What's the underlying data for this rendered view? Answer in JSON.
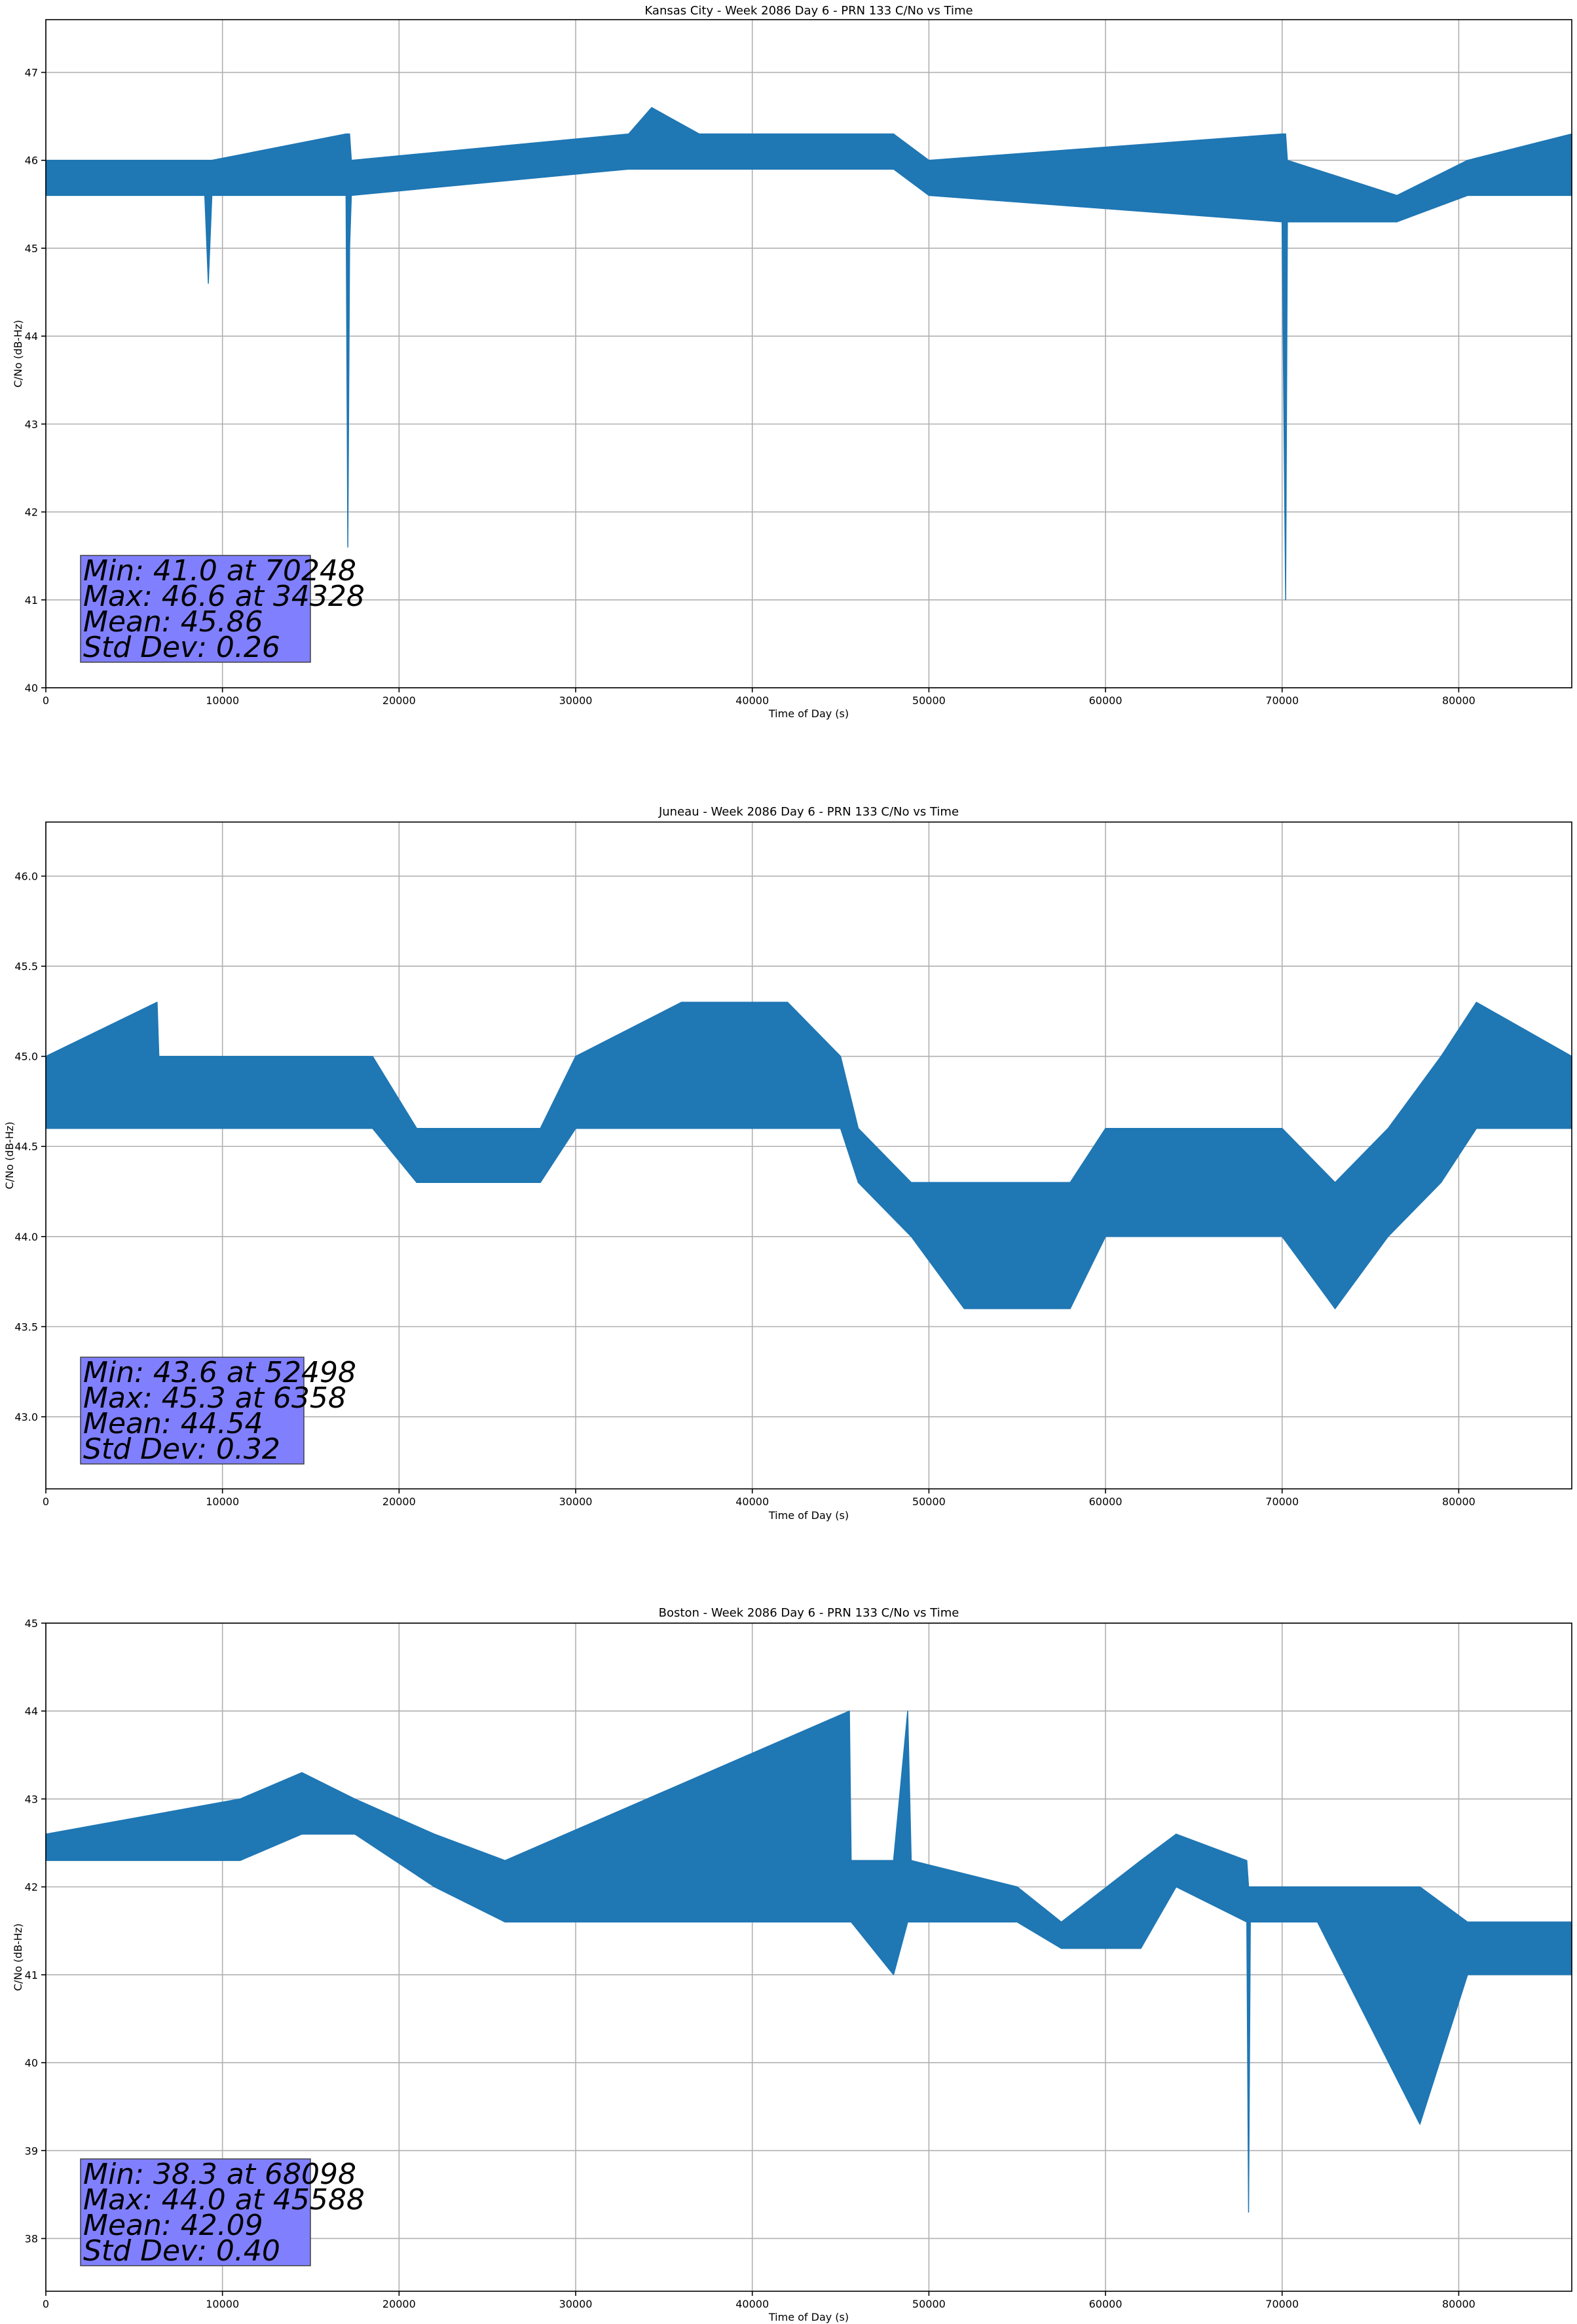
{
  "chart_data": [
    {
      "type": "line",
      "title": "Kansas City - Week 2086 Day 6 - PRN 133 C/No vs Time",
      "xlabel": "Time of Day (s)",
      "ylabel": "C/No (dB-Hz)",
      "xlim": [
        0,
        86400
      ],
      "ylim": [
        40,
        47.6
      ],
      "xticks": [
        0,
        10000,
        20000,
        30000,
        40000,
        50000,
        60000,
        70000,
        80000
      ],
      "yticks": [
        40,
        41,
        42,
        43,
        44,
        45,
        46,
        47
      ],
      "ytick_labels": [
        "40",
        "41",
        "42",
        "43",
        "44",
        "45",
        "46",
        "47"
      ],
      "grid": true,
      "color": "#1f77b4",
      "stats": {
        "min": "Min: 41.0 at 70248",
        "max": "Max: 46.6 at 34328",
        "mean": "Mean: 45.86",
        "std": "Std Dev: 0.26"
      },
      "series": [
        {
          "x": [
            0,
            9000,
            9200,
            9400,
            17000,
            17100,
            17200,
            17300,
            33000,
            34300,
            37000,
            48000,
            50000,
            70000,
            70200,
            70300,
            76500,
            80500,
            86400
          ],
          "low": [
            45.6,
            45.6,
            44.6,
            45.6,
            45.6,
            41.6,
            45.0,
            45.6,
            45.9,
            45.9,
            45.9,
            45.9,
            45.6,
            45.3,
            41.0,
            45.3,
            45.3,
            45.6,
            45.6
          ],
          "high": [
            46.0,
            46.0,
            46.0,
            46.0,
            46.3,
            46.3,
            46.3,
            46.0,
            46.3,
            46.6,
            46.3,
            46.3,
            46.0,
            46.3,
            46.3,
            46.0,
            45.6,
            46.0,
            46.3
          ]
        }
      ]
    },
    {
      "type": "line",
      "title": "Juneau - Week 2086 Day 6 - PRN 133 C/No vs Time",
      "xlabel": "Time of Day (s)",
      "ylabel": "C/No (dB-Hz)",
      "xlim": [
        0,
        86400
      ],
      "ylim": [
        42.6,
        46.3
      ],
      "xticks": [
        0,
        10000,
        20000,
        30000,
        40000,
        50000,
        60000,
        70000,
        80000
      ],
      "yticks": [
        43.0,
        43.5,
        44.0,
        44.5,
        45.0,
        45.5,
        46.0
      ],
      "ytick_labels": [
        "43.0",
        "43.5",
        "44.0",
        "44.5",
        "45.0",
        "45.5",
        "46.0"
      ],
      "grid": true,
      "color": "#1f77b4",
      "stats": {
        "min": "Min: 43.6 at 52498",
        "max": "Max: 45.3 at 6358",
        "mean": "Mean: 44.54",
        "std": "Std Dev: 0.32"
      },
      "series": [
        {
          "x": [
            0,
            6300,
            6400,
            18500,
            21000,
            28000,
            30000,
            36000,
            42000,
            45000,
            46000,
            49000,
            52000,
            55000,
            58000,
            60000,
            62000,
            66000,
            70000,
            73000,
            76000,
            79000,
            81000,
            86400
          ],
          "low": [
            44.6,
            44.6,
            44.6,
            44.6,
            44.3,
            44.3,
            44.6,
            44.6,
            44.6,
            44.6,
            44.3,
            44.0,
            43.6,
            43.6,
            43.6,
            44.0,
            44.0,
            44.0,
            44.0,
            43.6,
            44.0,
            44.3,
            44.6,
            44.6
          ],
          "high": [
            45.0,
            45.3,
            45.0,
            45.0,
            44.6,
            44.6,
            45.0,
            45.3,
            45.3,
            45.0,
            44.6,
            44.3,
            44.3,
            44.3,
            44.3,
            44.6,
            44.6,
            44.6,
            44.6,
            44.3,
            44.6,
            45.0,
            45.3,
            45.0
          ]
        }
      ]
    },
    {
      "type": "line",
      "title": "Boston - Week 2086 Day 6 - PRN 133 C/No vs Time",
      "xlabel": "Time of Day (s)",
      "ylabel": "C/No (dB-Hz)",
      "xlim": [
        0,
        86400
      ],
      "ylim": [
        37.4,
        45
      ],
      "xticks": [
        0,
        10000,
        20000,
        30000,
        40000,
        50000,
        60000,
        70000,
        80000
      ],
      "yticks": [
        38,
        39,
        40,
        41,
        42,
        43,
        44,
        45
      ],
      "ytick_labels": [
        "38",
        "39",
        "40",
        "41",
        "42",
        "43",
        "44",
        "45"
      ],
      "grid": true,
      "color": "#1f77b4",
      "stats": {
        "min": "Min: 38.3 at 68098",
        "max": "Max: 44.0 at 45588",
        "mean": "Mean: 42.09",
        "std": "Std Dev: 0.40"
      },
      "series": [
        {
          "x": [
            0,
            11000,
            14500,
            17500,
            22000,
            26000,
            45500,
            45600,
            48000,
            48800,
            49000,
            55000,
            57500,
            62000,
            64000,
            68000,
            68100,
            68200,
            72000,
            77800,
            80500,
            86400
          ],
          "low": [
            42.3,
            42.3,
            42.6,
            42.6,
            42.0,
            41.6,
            41.6,
            41.6,
            41.0,
            41.6,
            41.6,
            41.6,
            41.3,
            41.3,
            42.0,
            41.6,
            38.3,
            41.6,
            41.6,
            39.3,
            41.0,
            41.0
          ],
          "high": [
            42.6,
            43.0,
            43.3,
            43.0,
            42.6,
            42.3,
            44.0,
            42.3,
            42.3,
            44.0,
            42.3,
            42.0,
            41.6,
            42.3,
            42.6,
            42.3,
            42.0,
            42.0,
            42.0,
            42.0,
            41.6,
            41.6
          ]
        }
      ]
    }
  ]
}
